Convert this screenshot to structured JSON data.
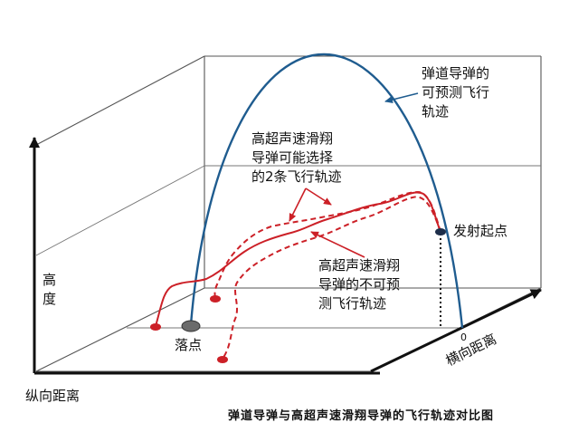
{
  "labels": {
    "ballistic": [
      "弹道导弹的",
      "可预测飞行",
      "轨迹"
    ],
    "hgv_choice": [
      "高超声速滑翔",
      "导弹可能选择",
      "的2条飞行轨迹"
    ],
    "hgv_unpredictable": [
      "高超声速滑翔",
      "导弹的不可预",
      "测飞行轨迹"
    ],
    "launch_point": "发射起点",
    "impact_point": "落点",
    "zero": "0",
    "altitude_axis": [
      "高",
      "度"
    ],
    "lateral_axis": "横向距离",
    "longitudinal_axis": "纵向距离"
  },
  "caption": "弹道导弹与高超声速滑翔导弹的飞行轨迹对比图",
  "colors": {
    "ballistic_curve": "#1f5c8f",
    "hgv_curve": "#cc2027",
    "frame": "#555555",
    "impact_marker": "#6b6b6b",
    "launch_marker": "#1e2e4a"
  }
}
